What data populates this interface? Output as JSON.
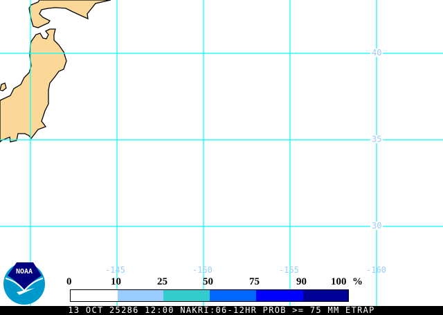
{
  "map": {
    "land_color": "#fcd898",
    "grid_color": "#00ffff",
    "label_color": "#99ccff",
    "lat_labels": [
      "40",
      "35",
      "30"
    ],
    "lon_labels": [
      "-145",
      "-150",
      "-155",
      "-160"
    ]
  },
  "legend": {
    "labels": [
      "0",
      "10",
      "25",
      "50",
      "75",
      "90",
      "100"
    ],
    "unit": "%",
    "colors": [
      "#ffffff",
      "#99ccff",
      "#33cccc",
      "#0066ff",
      "#0000ff",
      "#000099"
    ]
  },
  "logo": {
    "text": "NOAA"
  },
  "footer": {
    "caption": "13 OCT 25286 12:00 NAKRI:06-12HR PROB >= 75 MM ETRAP"
  }
}
